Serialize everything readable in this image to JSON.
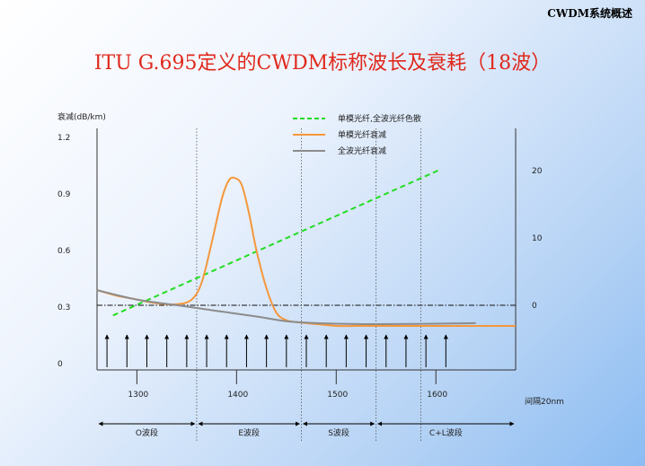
{
  "header": {
    "tag": "CWDM系统概述"
  },
  "title": "ITU G.695定义的CWDM标称波长及衰耗（18波）",
  "chart_data": {
    "type": "line",
    "title": "ITU G.695定义的CWDM标称波长及衰耗（18波）",
    "ylabel": "衰减(dB/km)",
    "xlabel": "",
    "xlim": [
      1260,
      1680
    ],
    "ylim": [
      0,
      1.2
    ],
    "y_ticks": [
      "1.2",
      "0.9",
      "0.6",
      "0.3",
      "0"
    ],
    "y_tick_values": [
      1.2,
      0.9,
      0.6,
      0.3,
      0
    ],
    "y2_ticks": [
      "20",
      "10",
      "0"
    ],
    "y2_tick_values": [
      20,
      10,
      0
    ],
    "y2lim": [
      -8.6,
      24
    ],
    "x_ticks": [
      "1300",
      "1400",
      "1500",
      "1600"
    ],
    "x_tick_values": [
      1300,
      1400,
      1500,
      1600
    ],
    "spacing_label": "间隔20nm",
    "reference_dispersion": 0,
    "legend": {
      "placement": "top-center",
      "items": [
        {
          "label": "单模光纤,全波光纤色散",
          "style": "dashed",
          "color": "#22dd22"
        },
        {
          "label": "单模光纤衰减",
          "style": "solid",
          "color": "#f5973a"
        },
        {
          "label": "全波光纤衰减",
          "style": "solid",
          "color": "#8c8c8c"
        }
      ]
    },
    "series": [
      {
        "name": "单模光纤,全波光纤色散",
        "axis": "right",
        "color": "#22dd22",
        "style": "dashed",
        "x": [
          1276,
          1602
        ],
        "y": [
          -1.5,
          20
        ]
      },
      {
        "name": "单模光纤衰减",
        "axis": "left",
        "color": "#f5973a",
        "style": "solid",
        "x": [
          1260,
          1280,
          1300,
          1320,
          1340,
          1355,
          1365,
          1375,
          1385,
          1392,
          1398,
          1405,
          1412,
          1420,
          1430,
          1440,
          1450,
          1460,
          1480,
          1500,
          1520,
          1540,
          1560,
          1580,
          1600,
          1620,
          1640,
          1660,
          1680
        ],
        "y": [
          0.39,
          0.36,
          0.34,
          0.32,
          0.315,
          0.34,
          0.43,
          0.64,
          0.87,
          0.97,
          0.985,
          0.95,
          0.81,
          0.6,
          0.4,
          0.27,
          0.23,
          0.22,
          0.21,
          0.2,
          0.2,
          0.2,
          0.2,
          0.2,
          0.2,
          0.2,
          0.2,
          0.2,
          0.2
        ]
      },
      {
        "name": "全波光纤衰减",
        "axis": "left",
        "color": "#8c8c8c",
        "style": "solid",
        "x": [
          1260,
          1300,
          1340,
          1380,
          1420,
          1450,
          1480,
          1520,
          1560,
          1600,
          1640
        ],
        "y": [
          0.39,
          0.34,
          0.31,
          0.28,
          0.25,
          0.225,
          0.215,
          0.21,
          0.21,
          0.212,
          0.215
        ]
      }
    ],
    "wavelengths": [
      1270,
      1290,
      1310,
      1330,
      1350,
      1370,
      1390,
      1410,
      1430,
      1450,
      1470,
      1490,
      1510,
      1530,
      1550,
      1570,
      1590,
      1610
    ],
    "band_dividers": [
      1360,
      1465,
      1540,
      1585
    ],
    "bands": [
      {
        "label": "O波段",
        "from": 1260,
        "to": 1360
      },
      {
        "label": "E波段",
        "from": 1360,
        "to": 1465
      },
      {
        "label": "S波段",
        "from": 1465,
        "to": 1540
      },
      {
        "label": "C+L波段",
        "from": 1540,
        "to": 1680
      }
    ]
  }
}
